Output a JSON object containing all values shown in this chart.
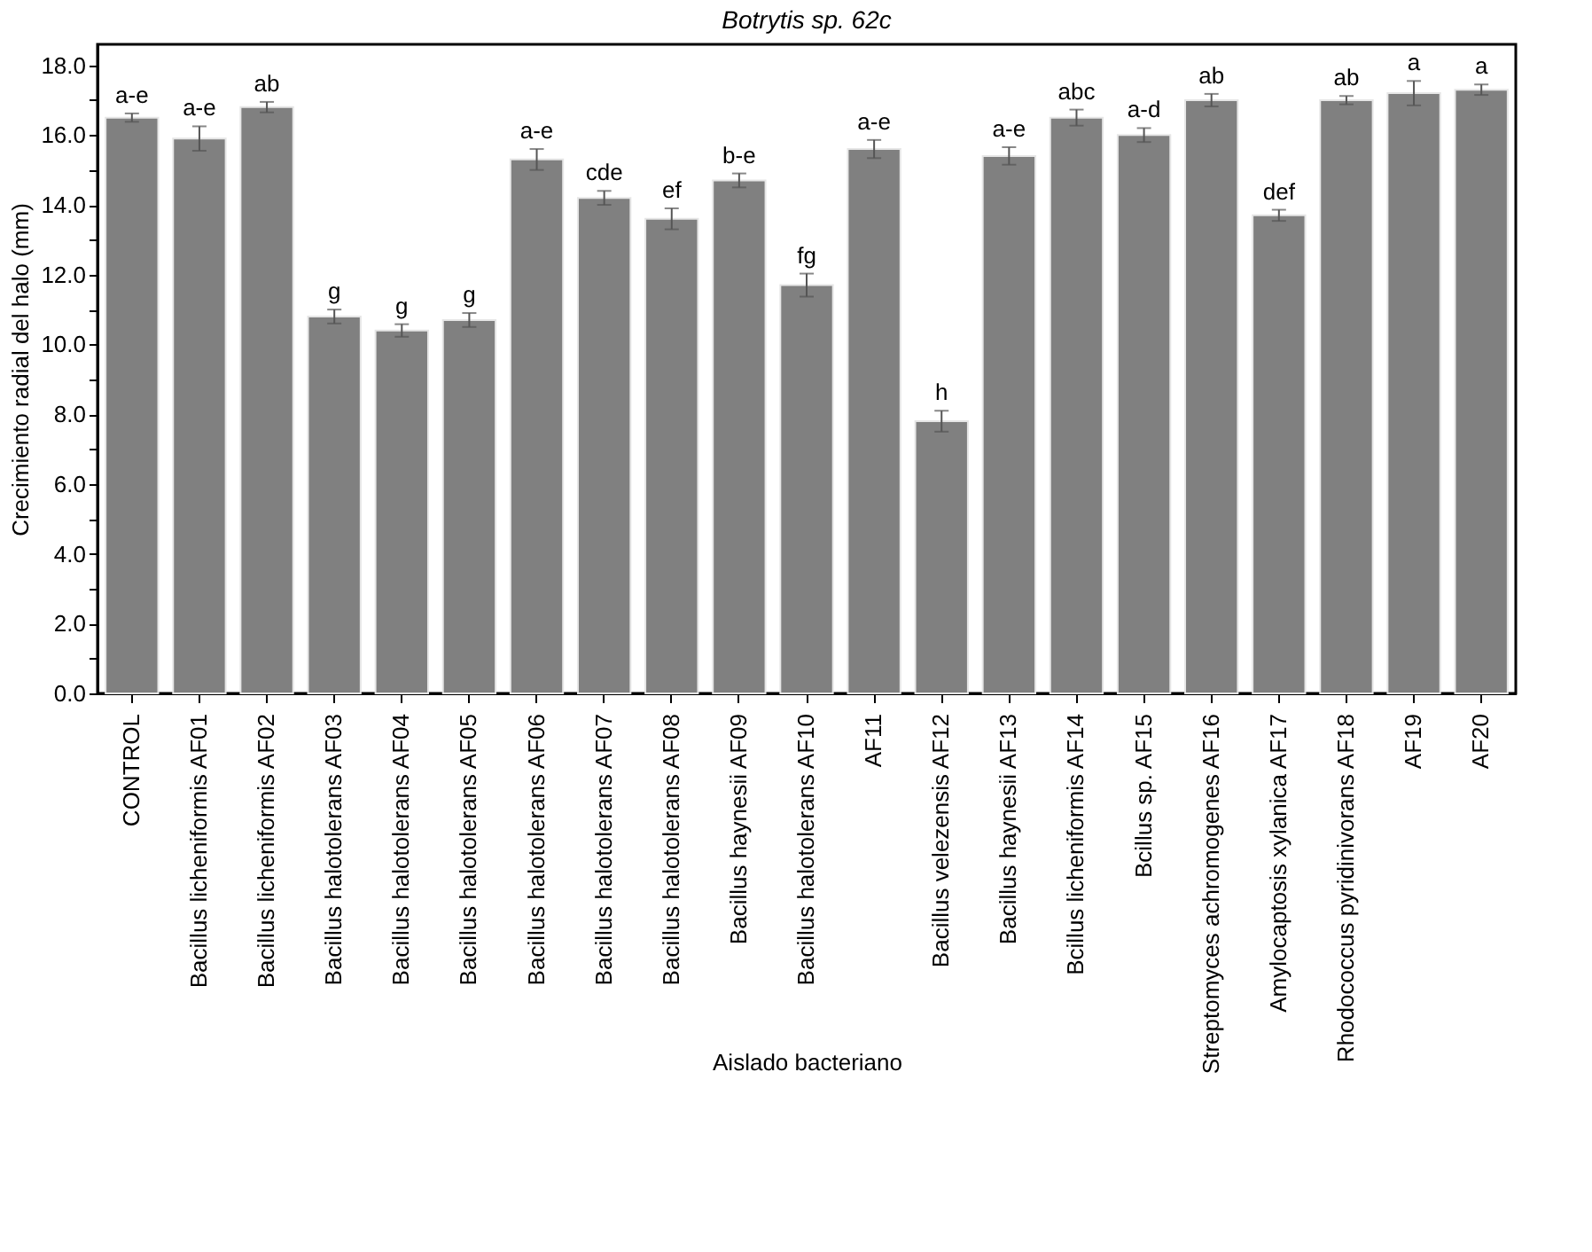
{
  "chart_data": {
    "type": "bar",
    "title": "Botrytis sp. 62c",
    "xlabel": "Aislado bacteriano",
    "ylabel": "Crecimiento radial del halo (mm)",
    "categories": [
      "CONTROL",
      "Bacillus licheniformis AF01",
      "Bacillus licheniformis AF02",
      "Bacillus halotolerans AF03",
      "Bacillus halotolerans AF04",
      "Bacillus halotolerans AF05",
      "Bacillus halotolerans AF06",
      "Bacillus halotolerans AF07",
      "Bacillus halotolerans AF08",
      "Bacillus haynesii AF09",
      "Bacillus halotolerans AF10",
      "AF11",
      "Bacillus velezensis AF12",
      "Bacillus haynesii AF13",
      "Bcillus licheniformis AF14",
      "Bcillus sp. AF15",
      "Streptomyces achromogenes AF16",
      "Amylocaptosis xylanica AF17",
      "Rhodococcus pyridinivorans  AF18",
      "AF19",
      "AF20"
    ],
    "values": [
      16.5,
      15.9,
      16.8,
      10.8,
      10.4,
      10.7,
      15.3,
      14.2,
      13.6,
      14.7,
      11.7,
      15.6,
      7.8,
      15.4,
      16.5,
      16.0,
      17.0,
      13.7,
      17.0,
      17.2,
      17.3
    ],
    "errors": [
      0.12,
      0.35,
      0.15,
      0.2,
      0.18,
      0.2,
      0.3,
      0.2,
      0.3,
      0.2,
      0.33,
      0.26,
      0.3,
      0.25,
      0.23,
      0.2,
      0.18,
      0.16,
      0.12,
      0.35,
      0.15
    ],
    "value_labels": [
      "a-e",
      "a-e",
      "ab",
      "g",
      "g",
      "g",
      "a-e",
      "cde",
      "ef",
      "b-e",
      "fg",
      "a-e",
      "h",
      "a-e",
      "abc",
      "a-d",
      "ab",
      "def",
      "ab",
      "a",
      "a"
    ],
    "color": "#808080",
    "ylim": [
      0,
      18.6
    ],
    "yticks": [
      {
        "value": 0,
        "label": "0.0"
      },
      {
        "value": 1,
        "label": null
      },
      {
        "value": 2,
        "label": "2.0"
      },
      {
        "value": 3,
        "label": null
      },
      {
        "value": 4,
        "label": "4.0"
      },
      {
        "value": 5,
        "label": null
      },
      {
        "value": 6,
        "label": "6.0"
      },
      {
        "value": 7,
        "label": null
      },
      {
        "value": 8,
        "label": "8.0"
      },
      {
        "value": 9,
        "label": null
      },
      {
        "value": 10,
        "label": "10.0"
      },
      {
        "value": 11,
        "label": null
      },
      {
        "value": 12,
        "label": "12.0"
      },
      {
        "value": 13,
        "label": null
      },
      {
        "value": 14,
        "label": "14.0"
      },
      {
        "value": 15,
        "label": null
      },
      {
        "value": 16,
        "label": "16.0"
      },
      {
        "value": 17,
        "label": null
      },
      {
        "value": 18,
        "label": "18.0"
      }
    ],
    "grid": false
  }
}
